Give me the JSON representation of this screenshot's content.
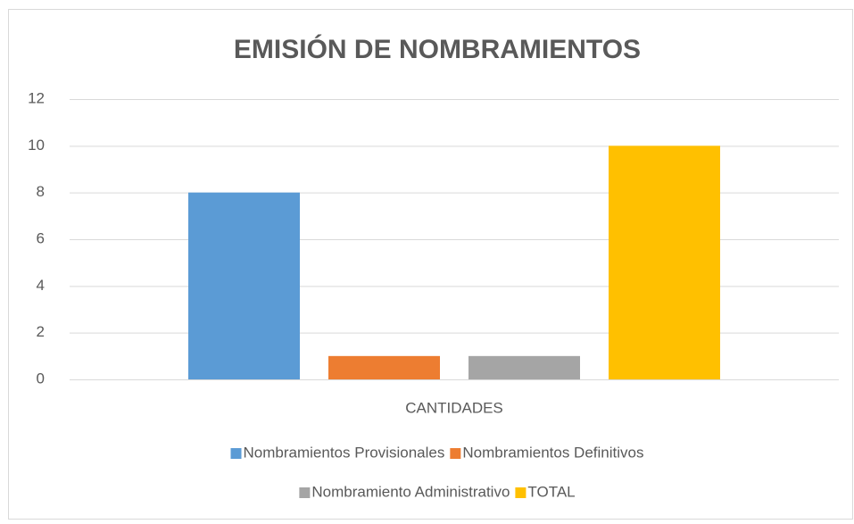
{
  "chart_data": {
    "type": "bar",
    "title": "EMISIÓN DE NOMBRAMIENTOS",
    "categories": [
      "CANTIDADES"
    ],
    "series": [
      {
        "name": "Nombramientos Provisionales",
        "color": "#5b9bd5",
        "values": [
          8
        ]
      },
      {
        "name": "Nombramientos Definitivos",
        "color": "#ed7d31",
        "values": [
          1
        ]
      },
      {
        "name": "Nombramiento Administrativo",
        "color": "#a5a5a5",
        "values": [
          1
        ]
      },
      {
        "name": "TOTAL",
        "color": "#ffc000",
        "values": [
          10
        ]
      }
    ],
    "ylim": [
      0,
      12
    ],
    "yticks": [
      0,
      2,
      4,
      6,
      8,
      10,
      12
    ],
    "grid": true,
    "legend": "bottom"
  }
}
